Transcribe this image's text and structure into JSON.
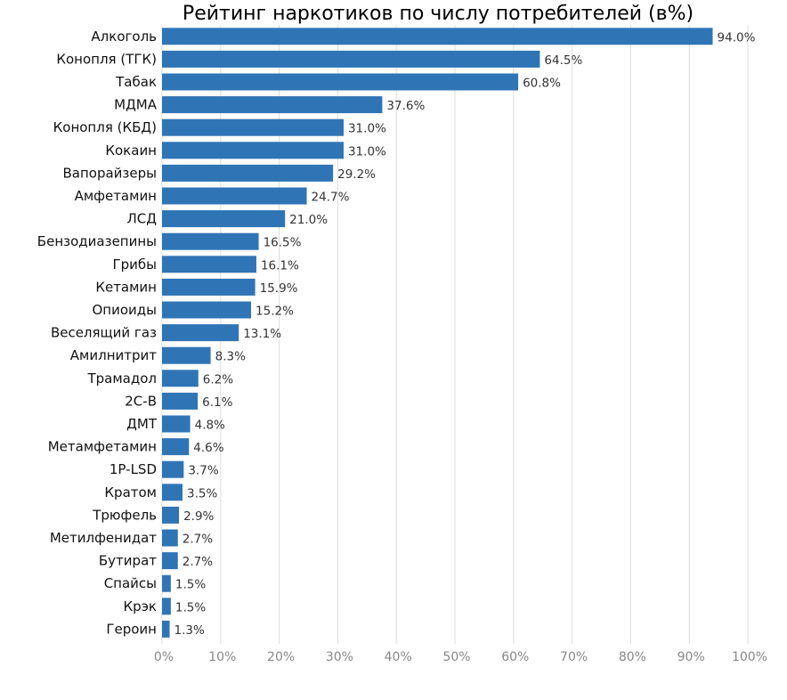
{
  "chart_data": {
    "type": "bar",
    "orientation": "horizontal",
    "title": "Рейтинг наркотиков по числу потребителей (в%)",
    "xlim": [
      0,
      100
    ],
    "xticks": [
      "0%",
      "10%",
      "20%",
      "30%",
      "40%",
      "50%",
      "60%",
      "70%",
      "80%",
      "90%",
      "100%"
    ],
    "categories": [
      "Алкоголь",
      "Конопля (ТГК)",
      "Табак",
      "МДМА",
      "Конопля (КБД)",
      "Кокаин",
      "Вапорайзеры",
      "Амфетамин",
      "ЛСД",
      "Бензодиазепины",
      "Грибы",
      "Кетамин",
      "Опиоиды",
      "Веселящий газ",
      "Амилнитрит",
      "Трамадол",
      "2С-В",
      "ДМТ",
      "Метамфетамин",
      "1P-LSD",
      "Кратом",
      "Трюфель",
      "Метилфенидат",
      "Бутират",
      "Спайсы",
      "Крэк",
      "Героин"
    ],
    "values": [
      94.0,
      64.5,
      60.8,
      37.6,
      31.0,
      31.0,
      29.2,
      24.7,
      21.0,
      16.5,
      16.1,
      15.9,
      15.2,
      13.1,
      8.3,
      6.2,
      6.1,
      4.8,
      4.6,
      3.7,
      3.5,
      2.9,
      2.7,
      2.7,
      1.5,
      1.5,
      1.3
    ],
    "value_labels": [
      "94.0%",
      "64.5%",
      "60.8%",
      "37.6%",
      "31.0%",
      "31.0%",
      "29.2%",
      "24.7%",
      "21.0%",
      "16.5%",
      "16.1%",
      "15.9%",
      "15.2%",
      "13.1%",
      "8.3%",
      "6.2%",
      "6.1%",
      "4.8%",
      "4.6%",
      "3.7%",
      "3.5%",
      "2.9%",
      "2.7%",
      "2.7%",
      "1.5%",
      "1.5%",
      "1.3%"
    ],
    "bar_color": "#2f75b5",
    "grid": true
  }
}
